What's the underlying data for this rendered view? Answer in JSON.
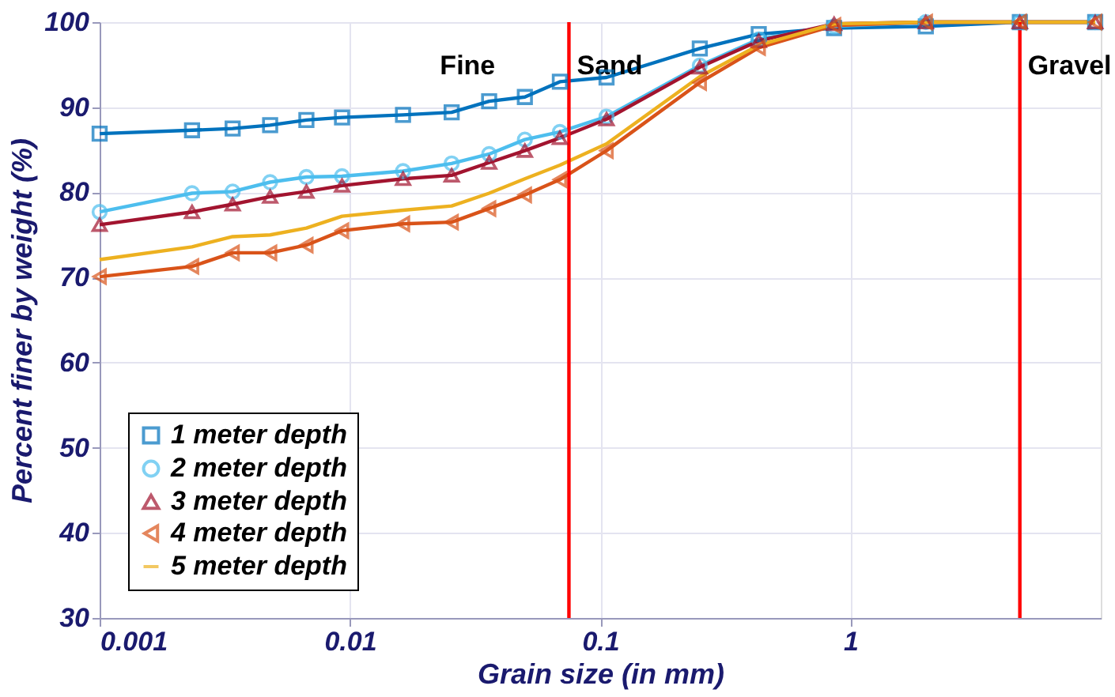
{
  "chart_data": {
    "type": "line",
    "xlabel": "Grain size (in mm)",
    "ylabel": "Percent finer by weight (%)",
    "x": [
      0.001,
      0.00234,
      0.0034,
      0.0048,
      0.0067,
      0.0093,
      0.0163,
      0.0255,
      0.036,
      0.05,
      0.069,
      0.106,
      0.25,
      0.43,
      0.86,
      2.0,
      4.75,
      9.5
    ],
    "series": [
      {
        "name": "1 meter depth",
        "color": "#0072bd",
        "marker": "square",
        "values": [
          86.9,
          87.3,
          87.5,
          87.9,
          88.5,
          88.8,
          89.1,
          89.4,
          90.7,
          91.2,
          93.0,
          93.5,
          96.9,
          98.6,
          99.3,
          99.5,
          100,
          100
        ]
      },
      {
        "name": "2 meter depth",
        "color": "#4dbeee",
        "marker": "circle",
        "values": [
          77.7,
          79.9,
          80.1,
          81.2,
          81.8,
          81.9,
          82.5,
          83.4,
          84.5,
          86.2,
          87.1,
          88.9,
          94.9,
          98.0,
          99.5,
          100,
          100,
          100
        ]
      },
      {
        "name": "3 meter depth",
        "color": "#a2142f",
        "marker": "triangle",
        "values": [
          76.2,
          77.7,
          78.6,
          79.5,
          80.1,
          80.8,
          81.6,
          82.0,
          83.5,
          84.9,
          86.4,
          88.6,
          94.7,
          97.8,
          99.8,
          100,
          100,
          100
        ]
      },
      {
        "name": "4 meter depth",
        "color": "#d95319",
        "marker": "triangle-left",
        "values": [
          70.1,
          71.3,
          72.9,
          72.9,
          73.8,
          75.5,
          76.3,
          76.5,
          78.1,
          79.7,
          81.5,
          84.9,
          92.9,
          97.0,
          99.6,
          100,
          100,
          100
        ]
      },
      {
        "name": "5 meter depth",
        "color": "#edb120",
        "marker": "none",
        "values": [
          72.1,
          73.6,
          74.8,
          75.0,
          75.8,
          77.2,
          77.9,
          78.4,
          79.9,
          81.6,
          83.2,
          85.7,
          93.6,
          97.3,
          99.8,
          100,
          100,
          100
        ]
      }
    ],
    "log": "x",
    "xlim": [
      0.001,
      10
    ],
    "xticks": [
      0.001,
      0.01,
      0.1,
      1
    ],
    "ylim": [
      30,
      100
    ],
    "yticks": [
      30,
      40,
      50,
      60,
      70,
      80,
      90,
      100
    ],
    "grid": true,
    "legend": "bottom left",
    "ref_lines": [
      {
        "axis": "x",
        "value": 0.075,
        "label": "Sand",
        "color": "#ff0000"
      },
      {
        "axis": "x",
        "value": 4.75,
        "label": "Gravel",
        "color": "#ff0000"
      }
    ],
    "annotations": [
      "Fine"
    ]
  }
}
